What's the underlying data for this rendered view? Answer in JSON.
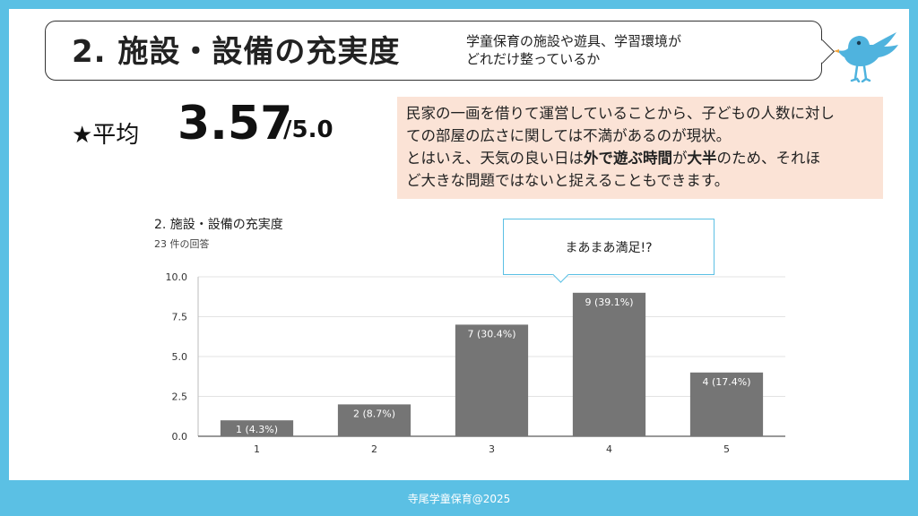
{
  "header": {
    "title": "2. 施設・設備の充実度",
    "subtitle_line1": "学童保育の施設や遊具、学習環境が",
    "subtitle_line2": "どれだけ整っているか"
  },
  "average": {
    "label": "★平均",
    "value": "3.57",
    "max": "/5.0"
  },
  "note": {
    "line1": "民家の一画を借りて運営していることから、子どもの人数に対し",
    "line2": "ての部屋の広さに関しては不満があるのが現状。",
    "line3_pre": "とはいえ、天気の良い日は",
    "line3_b1": "外で遊ぶ時間",
    "line3_mid": "が",
    "line3_b2": "大半",
    "line3_post": "のため、それほ",
    "line4": "ど大きな問題ではないと捉えることもできます。"
  },
  "callout": {
    "text": "まあまあ満足!?"
  },
  "footer": {
    "text": "寺尾学童保育@2025"
  },
  "colors": {
    "frame": "#5bc0e4",
    "bar": "#757575",
    "note_bg": "#fbe3d6"
  },
  "chart_data": {
    "type": "bar",
    "title": "2. 施設・設備の充実度",
    "subtitle": "23 件の回答",
    "categories": [
      "1",
      "2",
      "3",
      "4",
      "5"
    ],
    "values": [
      1,
      2,
      7,
      9,
      4
    ],
    "data_labels": [
      "1 (4.3%)",
      "2 (8.7%)",
      "7 (30.4%)",
      "9 (39.1%)",
      "4 (17.4%)"
    ],
    "ylim": [
      0,
      10
    ],
    "yticks": [
      "0.0",
      "2.5",
      "5.0",
      "7.5",
      "10.0"
    ],
    "grid": true
  }
}
